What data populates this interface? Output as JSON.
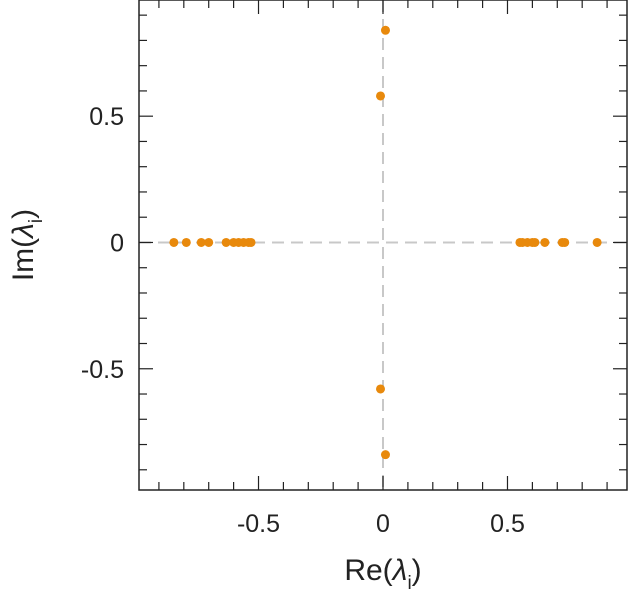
{
  "chart_data": {
    "type": "scatter",
    "xlabel": "Re(λi)",
    "ylabel": "Im(λi)",
    "xlabel_parts": {
      "pre": "Re(",
      "sym": "λ",
      "sub": "i",
      "post": ")"
    },
    "ylabel_parts": {
      "pre": "Im(",
      "sym": "λ",
      "sub": "i",
      "post": ")"
    },
    "xlim": [
      -0.98,
      0.98
    ],
    "ylim": [
      -0.98,
      0.96
    ],
    "xticks": [
      -0.5,
      0,
      0.5
    ],
    "xtick_labels": [
      "-0.5",
      "0",
      "0.5"
    ],
    "yticks": [
      -0.5,
      0,
      0.5
    ],
    "ytick_labels": [
      "-0.5",
      "0",
      "0.5"
    ],
    "minor_step": 0.1,
    "grid": false,
    "reference_lines": [
      0,
      0
    ],
    "point_color": "#E8890C",
    "reference_line_color": "#C8C8C8",
    "series": [
      {
        "x": [
          -0.84,
          -0.79,
          -0.73,
          -0.7,
          -0.63,
          -0.6,
          -0.58,
          -0.56,
          -0.54,
          -0.53,
          0.55,
          0.56,
          0.58,
          0.6,
          0.61,
          0.65,
          0.72,
          0.73,
          0.86,
          0.01,
          -0.01,
          -0.01,
          0.01
        ],
        "y": [
          0,
          0,
          0,
          0,
          0,
          0,
          0,
          0,
          0,
          0,
          0,
          0,
          0,
          0,
          0,
          0,
          0,
          0,
          0,
          0.84,
          0.58,
          -0.58,
          -0.84
        ]
      }
    ]
  }
}
